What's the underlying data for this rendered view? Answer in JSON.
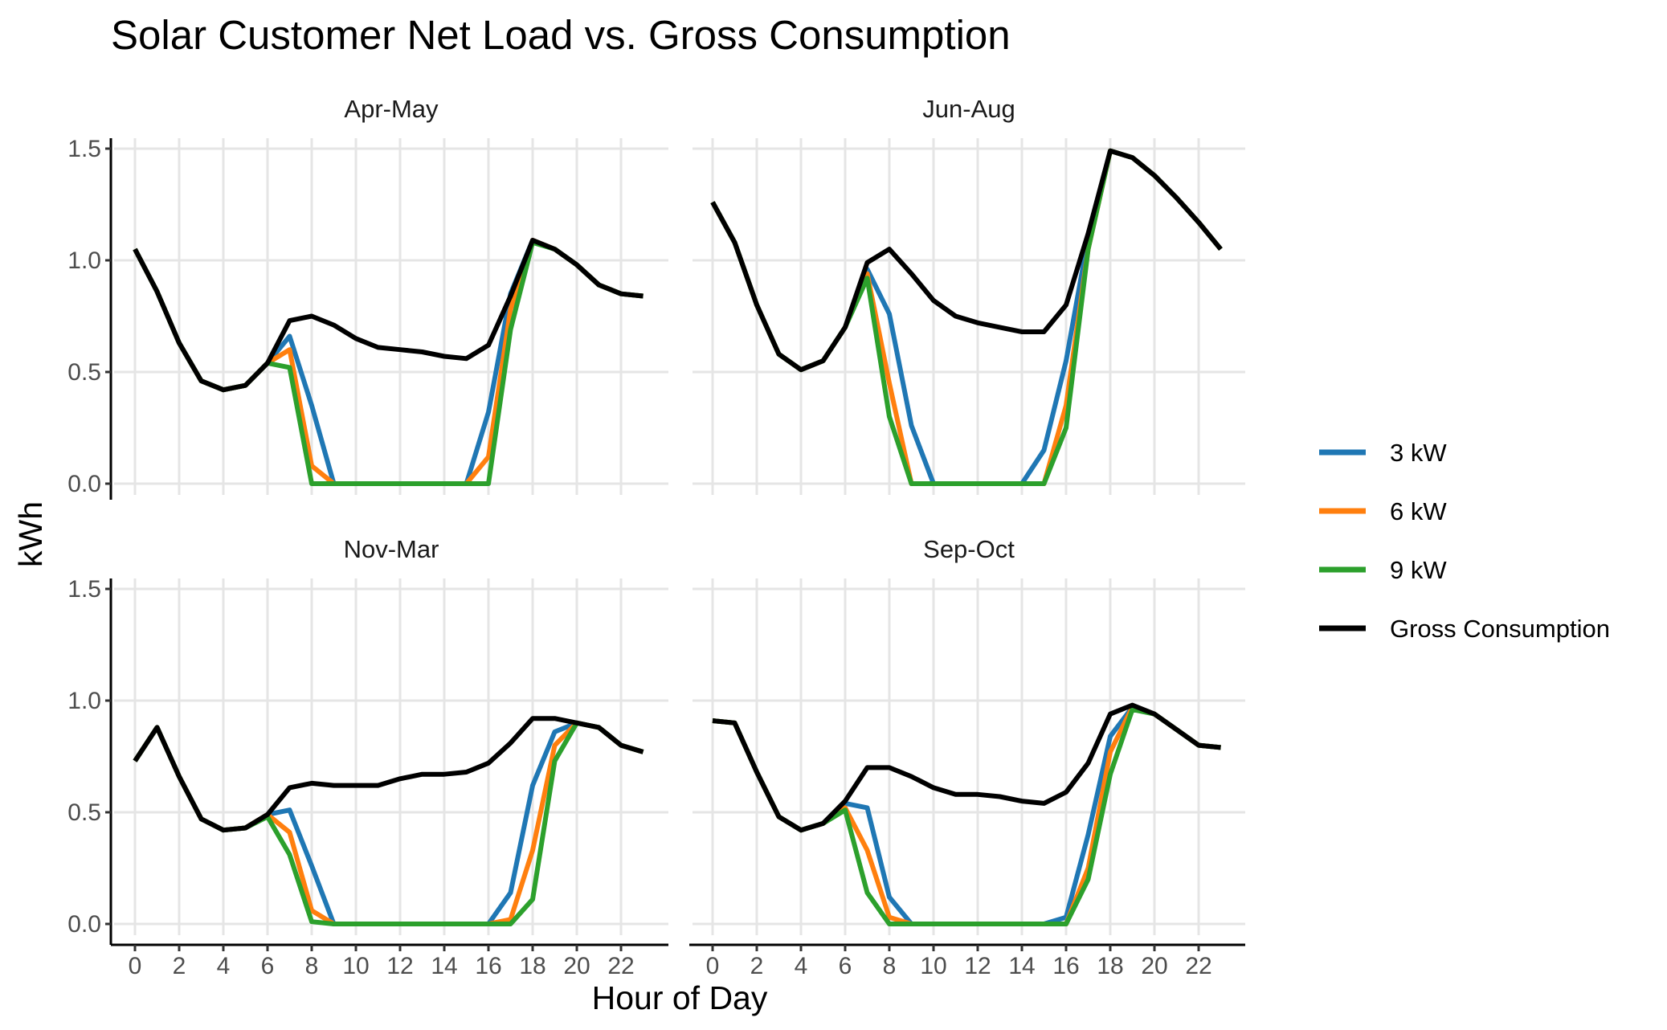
{
  "chart_data": {
    "type": "line",
    "title": "Solar Customer Net Load vs. Gross Consumption",
    "xlabel": "Hour of Day",
    "ylabel": "kWh",
    "xlim": [
      0,
      23
    ],
    "ylim": [
      0,
      1.5
    ],
    "x_ticks": [
      0,
      2,
      4,
      6,
      8,
      10,
      12,
      14,
      16,
      18,
      20,
      22
    ],
    "y_ticks": [
      0,
      0.5,
      1,
      1.5
    ],
    "y_tick_labels": [
      "0.0",
      "0.5",
      "1.0",
      "1.5"
    ],
    "grid": true,
    "legend_position": "right",
    "hours": [
      0,
      1,
      2,
      3,
      4,
      5,
      6,
      7,
      8,
      9,
      10,
      11,
      12,
      13,
      14,
      15,
      16,
      17,
      18,
      19,
      20,
      21,
      22,
      23
    ],
    "series_styles": [
      {
        "name": "3 kW",
        "color": "#1f77b4"
      },
      {
        "name": "6 kW",
        "color": "#ff7f0e"
      },
      {
        "name": "9 kW",
        "color": "#2ca02c"
      },
      {
        "name": "Gross Consumption",
        "color": "#000000"
      }
    ],
    "panels": [
      {
        "label": "Apr-May",
        "series": [
          {
            "name": "3 kW",
            "values": [
              1.05,
              0.86,
              0.63,
              0.46,
              0.42,
              0.44,
              0.54,
              0.66,
              0.35,
              0.0,
              0,
              0,
              0,
              0,
              0,
              0,
              0.32,
              0.85,
              1.09,
              1.05,
              0.98,
              0.89,
              0.85,
              0.84
            ]
          },
          {
            "name": "6 kW",
            "values": [
              1.05,
              0.86,
              0.63,
              0.46,
              0.42,
              0.44,
              0.54,
              0.6,
              0.08,
              0.0,
              0,
              0,
              0,
              0,
              0,
              0,
              0.12,
              0.78,
              1.09,
              1.05,
              0.98,
              0.89,
              0.85,
              0.84
            ]
          },
          {
            "name": "9 kW",
            "values": [
              1.05,
              0.86,
              0.63,
              0.46,
              0.42,
              0.44,
              0.54,
              0.52,
              0.0,
              0.0,
              0,
              0,
              0,
              0,
              0,
              0,
              0.0,
              0.69,
              1.08,
              1.05,
              0.98,
              0.89,
              0.85,
              0.84
            ]
          },
          {
            "name": "Gross Consumption",
            "values": [
              1.05,
              0.86,
              0.63,
              0.46,
              0.42,
              0.44,
              0.54,
              0.73,
              0.75,
              0.71,
              0.65,
              0.61,
              0.6,
              0.59,
              0.57,
              0.56,
              0.62,
              0.84,
              1.09,
              1.05,
              0.98,
              0.89,
              0.85,
              0.84
            ]
          }
        ]
      },
      {
        "label": "Jun-Aug",
        "series": [
          {
            "name": "3 kW",
            "values": [
              1.26,
              1.08,
              0.8,
              0.58,
              0.51,
              0.55,
              0.7,
              0.96,
              0.76,
              0.26,
              0,
              0,
              0,
              0,
              0,
              0.15,
              0.55,
              1.1,
              1.49,
              1.46,
              1.38,
              1.28,
              1.17,
              1.05
            ]
          },
          {
            "name": "6 kW",
            "values": [
              1.26,
              1.08,
              0.8,
              0.58,
              0.51,
              0.55,
              0.7,
              0.94,
              0.45,
              0.0,
              0,
              0,
              0,
              0,
              0,
              0.0,
              0.35,
              1.05,
              1.49,
              1.46,
              1.38,
              1.28,
              1.17,
              1.05
            ]
          },
          {
            "name": "9 kW",
            "values": [
              1.26,
              1.08,
              0.8,
              0.58,
              0.51,
              0.55,
              0.7,
              0.92,
              0.3,
              0.0,
              0,
              0,
              0,
              0,
              0,
              0.0,
              0.25,
              1.05,
              1.49,
              1.46,
              1.38,
              1.28,
              1.17,
              1.05
            ]
          },
          {
            "name": "Gross Consumption",
            "values": [
              1.26,
              1.08,
              0.8,
              0.58,
              0.51,
              0.55,
              0.7,
              0.99,
              1.05,
              0.94,
              0.82,
              0.75,
              0.72,
              0.7,
              0.68,
              0.68,
              0.8,
              1.12,
              1.49,
              1.46,
              1.38,
              1.28,
              1.17,
              1.05
            ]
          }
        ]
      },
      {
        "label": "Nov-Mar",
        "series": [
          {
            "name": "3 kW",
            "values": [
              0.73,
              0.88,
              0.66,
              0.47,
              0.42,
              0.43,
              0.49,
              0.51,
              0.26,
              0.0,
              0,
              0,
              0,
              0,
              0,
              0,
              0.0,
              0.14,
              0.62,
              0.86,
              0.9,
              0.88,
              0.8,
              0.77
            ]
          },
          {
            "name": "6 kW",
            "values": [
              0.73,
              0.88,
              0.66,
              0.47,
              0.42,
              0.43,
              0.49,
              0.41,
              0.06,
              0.0,
              0,
              0,
              0,
              0,
              0,
              0,
              0.0,
              0.02,
              0.33,
              0.8,
              0.9,
              0.88,
              0.8,
              0.77
            ]
          },
          {
            "name": "9 kW",
            "values": [
              0.73,
              0.88,
              0.66,
              0.47,
              0.42,
              0.43,
              0.48,
              0.31,
              0.01,
              0.0,
              0,
              0,
              0,
              0,
              0,
              0,
              0.0,
              0.0,
              0.11,
              0.73,
              0.9,
              0.88,
              0.8,
              0.77
            ]
          },
          {
            "name": "Gross Consumption",
            "values": [
              0.73,
              0.88,
              0.66,
              0.47,
              0.42,
              0.43,
              0.49,
              0.61,
              0.63,
              0.62,
              0.62,
              0.62,
              0.65,
              0.67,
              0.67,
              0.68,
              0.72,
              0.81,
              0.92,
              0.92,
              0.9,
              0.88,
              0.8,
              0.77
            ]
          }
        ]
      },
      {
        "label": "Sep-Oct",
        "series": [
          {
            "name": "3 kW",
            "values": [
              0.91,
              0.9,
              0.68,
              0.48,
              0.42,
              0.45,
              0.54,
              0.52,
              0.12,
              0.0,
              0,
              0,
              0,
              0,
              0,
              0.0,
              0.03,
              0.4,
              0.84,
              0.97,
              0.94,
              0.87,
              0.8,
              0.79
            ]
          },
          {
            "name": "6 kW",
            "values": [
              0.91,
              0.9,
              0.68,
              0.48,
              0.42,
              0.45,
              0.52,
              0.33,
              0.03,
              0.0,
              0,
              0,
              0,
              0,
              0,
              0.0,
              0.0,
              0.25,
              0.77,
              0.97,
              0.94,
              0.87,
              0.8,
              0.79
            ]
          },
          {
            "name": "9 kW",
            "values": [
              0.91,
              0.9,
              0.68,
              0.48,
              0.42,
              0.45,
              0.51,
              0.14,
              0.0,
              0.0,
              0,
              0,
              0,
              0,
              0,
              0.0,
              0.0,
              0.2,
              0.67,
              0.96,
              0.94,
              0.87,
              0.8,
              0.79
            ]
          },
          {
            "name": "Gross Consumption",
            "values": [
              0.91,
              0.9,
              0.68,
              0.48,
              0.42,
              0.45,
              0.55,
              0.7,
              0.7,
              0.66,
              0.61,
              0.58,
              0.58,
              0.57,
              0.55,
              0.54,
              0.59,
              0.72,
              0.94,
              0.98,
              0.94,
              0.87,
              0.8,
              0.79
            ]
          }
        ]
      }
    ]
  }
}
